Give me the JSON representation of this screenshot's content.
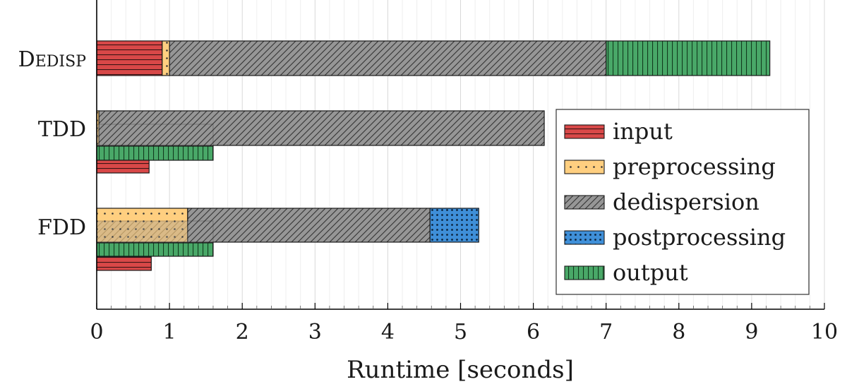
{
  "chart_data": {
    "type": "bar",
    "orientation": "horizontal",
    "stacked": true,
    "xlabel": "Runtime [seconds]",
    "xlim": [
      0,
      10
    ],
    "xticks": [
      0,
      1,
      2,
      3,
      4,
      5,
      6,
      7,
      8,
      9,
      10
    ],
    "grid": true,
    "legend_position": "right",
    "categories": [
      "Dedisp",
      "TDD",
      "FDD"
    ],
    "series": [
      {
        "name": "input",
        "color": "#d84848",
        "pattern": "horizontal-lines"
      },
      {
        "name": "preprocessing",
        "color": "#ffcf80",
        "pattern": "dots"
      },
      {
        "name": "dedispersion",
        "color": "#969696",
        "pattern": "diagonal-lines"
      },
      {
        "name": "postprocessing",
        "color": "#3f8fd8",
        "pattern": "dense-dots"
      },
      {
        "name": "output",
        "color": "#49a868",
        "pattern": "vertical-lines"
      }
    ],
    "bars": [
      {
        "category": "Dedisp",
        "row": "main",
        "segments": [
          {
            "series": "input",
            "start": 0,
            "end": 0.9
          },
          {
            "series": "preprocessing",
            "start": 0.9,
            "end": 1.0
          },
          {
            "series": "dedispersion",
            "start": 1.0,
            "end": 7.0
          },
          {
            "series": "output",
            "start": 7.0,
            "end": 9.25
          }
        ]
      },
      {
        "category": "TDD",
        "row": "main",
        "segments": [
          {
            "series": "preprocessing",
            "start": 0,
            "end": 0.03
          },
          {
            "series": "dedispersion",
            "start": 0.03,
            "end": 6.15
          }
        ]
      },
      {
        "category": "TDD",
        "row": "overlap",
        "segments": [
          {
            "series": "dedispersion",
            "start": 0,
            "end": 1.6,
            "alpha": 0.35
          }
        ]
      },
      {
        "category": "TDD",
        "row": "output",
        "segments": [
          {
            "series": "output",
            "start": 0,
            "end": 1.6
          }
        ]
      },
      {
        "category": "TDD",
        "row": "input",
        "segments": [
          {
            "series": "input",
            "start": 0,
            "end": 0.72
          }
        ]
      },
      {
        "category": "FDD",
        "row": "main",
        "segments": [
          {
            "series": "preprocessing",
            "start": 0,
            "end": 1.25
          },
          {
            "series": "dedispersion",
            "start": 1.25,
            "end": 4.58
          },
          {
            "series": "postprocessing",
            "start": 4.58,
            "end": 5.25
          }
        ]
      },
      {
        "category": "FDD",
        "row": "overlap",
        "segments": [
          {
            "series": "dedispersion",
            "start": 0,
            "end": 1.6,
            "alpha": 0.35
          }
        ]
      },
      {
        "category": "FDD",
        "row": "output",
        "segments": [
          {
            "series": "output",
            "start": 0,
            "end": 1.6
          }
        ]
      },
      {
        "category": "FDD",
        "row": "input",
        "segments": [
          {
            "series": "input",
            "start": 0,
            "end": 0.75
          }
        ]
      }
    ]
  }
}
